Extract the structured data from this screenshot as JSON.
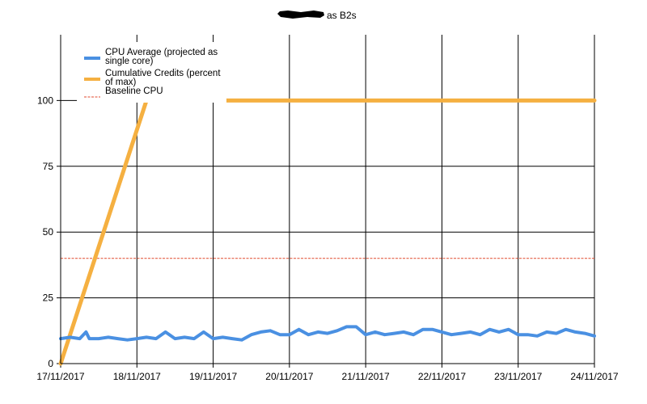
{
  "chart_data": {
    "type": "line",
    "title_redacted": true,
    "title": "as B2s",
    "xlabel": "",
    "ylabel": "",
    "x_ticks": [
      "17/11/2017",
      "18/11/2017",
      "19/11/2017",
      "20/11/2017",
      "21/11/2017",
      "22/11/2017",
      "23/11/2017",
      "24/11/2017"
    ],
    "xlim": [
      "17/11/2017",
      "24/11/2017"
    ],
    "y_ticks": [
      "0",
      "25",
      "50",
      "75",
      "100"
    ],
    "ylim": [
      0,
      125
    ],
    "grid": true,
    "legend": "top-left",
    "series": [
      {
        "name": "CPU Average (projected as single core)",
        "name_lines": [
          "CPU Average (projected as",
          "single core)"
        ],
        "color": "#4a90e2",
        "style": "solid",
        "x": [
          "17/11/2017 00:00",
          "17/11/2017 03:00",
          "17/11/2017 06:00",
          "17/11/2017 08:00",
          "17/11/2017 09:00",
          "17/11/2017 12:00",
          "17/11/2017 15:00",
          "17/11/2017 18:00",
          "17/11/2017 21:00",
          "18/11/2017 00:00",
          "18/11/2017 03:00",
          "18/11/2017 06:00",
          "18/11/2017 09:00",
          "18/11/2017 12:00",
          "18/11/2017 15:00",
          "18/11/2017 18:00",
          "18/11/2017 21:00",
          "19/11/2017 00:00",
          "19/11/2017 03:00",
          "19/11/2017 06:00",
          "19/11/2017 09:00",
          "19/11/2017 12:00",
          "19/11/2017 15:00",
          "19/11/2017 18:00",
          "19/11/2017 21:00",
          "20/11/2017 00:00",
          "20/11/2017 03:00",
          "20/11/2017 06:00",
          "20/11/2017 09:00",
          "20/11/2017 12:00",
          "20/11/2017 15:00",
          "20/11/2017 18:00",
          "20/11/2017 21:00",
          "21/11/2017 00:00",
          "21/11/2017 03:00",
          "21/11/2017 06:00",
          "21/11/2017 09:00",
          "21/11/2017 12:00",
          "21/11/2017 15:00",
          "21/11/2017 18:00",
          "21/11/2017 21:00",
          "22/11/2017 00:00",
          "22/11/2017 03:00",
          "22/11/2017 06:00",
          "22/11/2017 09:00",
          "22/11/2017 12:00",
          "22/11/2017 15:00",
          "22/11/2017 18:00",
          "22/11/2017 21:00",
          "23/11/2017 00:00",
          "23/11/2017 03:00",
          "23/11/2017 06:00",
          "23/11/2017 09:00",
          "23/11/2017 12:00",
          "23/11/2017 15:00",
          "23/11/2017 18:00",
          "23/11/2017 21:00",
          "24/11/2017 00:00"
        ],
        "y": [
          9.5,
          10,
          9.5,
          12,
          9.5,
          9.5,
          10,
          9.5,
          9,
          9.5,
          10,
          9.5,
          12,
          9.5,
          10,
          9.5,
          12,
          9.5,
          10,
          9.5,
          9,
          11,
          12,
          12.5,
          11,
          11,
          13,
          11,
          12,
          11.5,
          12.5,
          14,
          14,
          11,
          12,
          11,
          11.5,
          12,
          11,
          13,
          13,
          12,
          11,
          11.5,
          12,
          11,
          13,
          12,
          13,
          11,
          11,
          10.5,
          12,
          11.5,
          13,
          12,
          11.5,
          10.5
        ]
      },
      {
        "name": "Cumulative Credits (percent of max)",
        "name_lines": [
          "Cumulative Credits (percent",
          "of max)"
        ],
        "color": "#f5b041",
        "style": "solid",
        "x": [
          "17/11/2017 00:00",
          "18/11/2017 03:00",
          "18/11/2017 12:00",
          "24/11/2017 00:00"
        ],
        "y": [
          0,
          100,
          100,
          100
        ]
      },
      {
        "name": "Baseline CPU",
        "name_lines": [
          "Baseline CPU"
        ],
        "color": "#e04a2f",
        "style": "dotted",
        "x": [
          "17/11/2017 00:00",
          "24/11/2017 00:00"
        ],
        "y": [
          40,
          40
        ]
      }
    ]
  }
}
